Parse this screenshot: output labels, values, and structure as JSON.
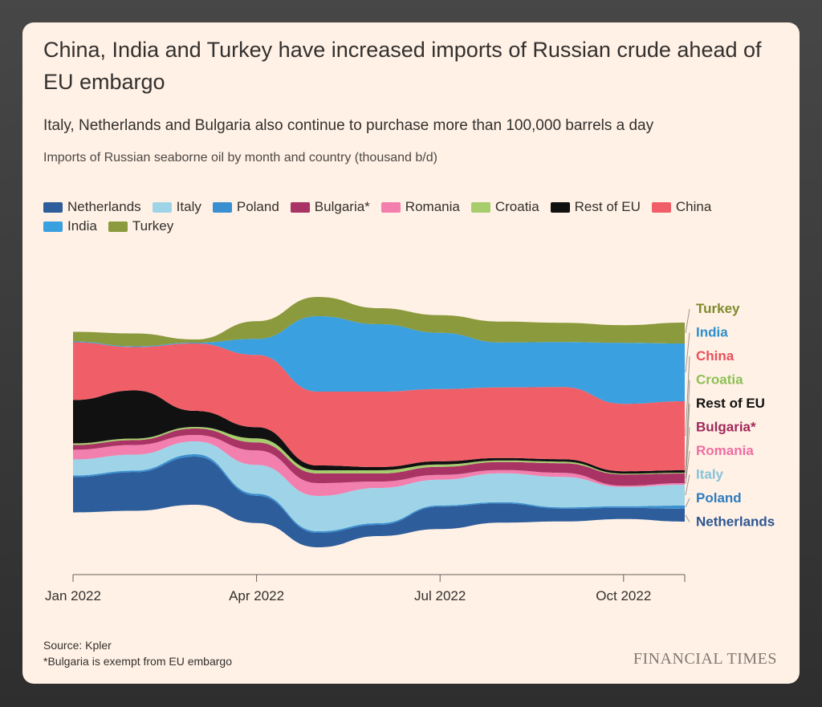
{
  "title": "China, India and Turkey have increased imports of Russian crude ahead of EU embargo",
  "subtitle": "Italy, Netherlands and Bulgaria also continue to purchase more than 100,000 barrels a day",
  "measure": "Imports of Russian seaborne oil by month and country (thousand b/d)",
  "source": "Source: Kpler",
  "footnote": "*Bulgaria is exempt from EU embargo",
  "brand": "FINANCIAL TIMES",
  "chart_data": {
    "type": "area",
    "x": [
      "2022-01",
      "2022-02",
      "2022-03",
      "2022-04",
      "2022-05",
      "2022-06",
      "2022-07",
      "2022-08",
      "2022-09",
      "2022-10",
      "2022-11"
    ],
    "x_tick_labels": [
      "Jan 2022",
      "Apr 2022",
      "Jul 2022",
      "Oct 2022"
    ],
    "x_tick_months": [
      "2022-01",
      "2022-04",
      "2022-07",
      "2022-10"
    ],
    "series": [
      {
        "name": "Netherlands",
        "color": "#2e5d9b",
        "values": [
          220,
          240,
          300,
          170,
          90,
          70,
          140,
          120,
          80,
          70,
          80
        ]
      },
      {
        "name": "Poland",
        "color": "#3a8fd0",
        "values": [
          10,
          10,
          15,
          12,
          10,
          10,
          8,
          8,
          8,
          10,
          20
        ]
      },
      {
        "name": "Italy",
        "color": "#9fd4e8",
        "values": [
          100,
          100,
          80,
          180,
          220,
          220,
          160,
          180,
          190,
          120,
          130
        ]
      },
      {
        "name": "Romania",
        "color": "#f27fae",
        "values": [
          60,
          60,
          40,
          90,
          80,
          40,
          30,
          20,
          25,
          8,
          10
        ]
      },
      {
        "name": "Bulgaria*",
        "color": "#a93364",
        "values": [
          30,
          30,
          40,
          50,
          60,
          50,
          50,
          50,
          60,
          70,
          60
        ]
      },
      {
        "name": "Croatia",
        "color": "#a6cc6e",
        "values": [
          10,
          10,
          10,
          25,
          20,
          20,
          15,
          10,
          10,
          5,
          5
        ]
      },
      {
        "name": "Rest of EU",
        "color": "#111111",
        "values": [
          270,
          300,
          100,
          70,
          30,
          20,
          20,
          15,
          15,
          15,
          15
        ]
      },
      {
        "name": "China",
        "color": "#f05f68",
        "values": [
          360,
          270,
          420,
          450,
          460,
          470,
          450,
          440,
          450,
          420,
          430
        ]
      },
      {
        "name": "India",
        "color": "#3aa0df",
        "values": [
          5,
          5,
          5,
          100,
          470,
          420,
          350,
          280,
          280,
          380,
          360
        ]
      },
      {
        "name": "Turkey",
        "color": "#8c9a3e",
        "values": [
          60,
          80,
          20,
          110,
          120,
          100,
          110,
          130,
          120,
          110,
          130
        ]
      }
    ],
    "legend_order": [
      "Netherlands",
      "Italy",
      "Poland",
      "Bulgaria*",
      "Romania",
      "Croatia",
      "Rest of EU",
      "China",
      "India",
      "Turkey"
    ],
    "end_label_order": [
      "Turkey",
      "India",
      "China",
      "Croatia",
      "Rest of EU",
      "Bulgaria*",
      "Romania",
      "Italy",
      "Poland",
      "Netherlands"
    ],
    "legend_placement": "top-left",
    "grid": false
  }
}
